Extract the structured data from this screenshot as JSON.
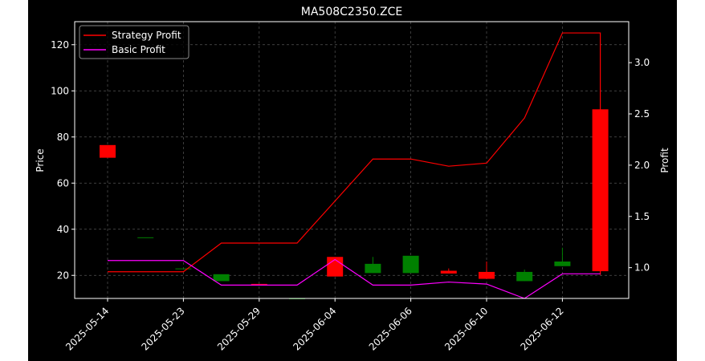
{
  "chart_data": {
    "type": "candlestick",
    "title": "MA508C2350.ZCE",
    "xlabel": "",
    "ylabel_left": "Price",
    "ylabel_right": "Profit",
    "ylim_left": [
      10,
      130
    ],
    "ylim_right": [
      0.7,
      3.4
    ],
    "x_tick_labels": [
      "2025-05-14",
      "2025-05-23",
      "2025-05-29",
      "2025-06-04",
      "2025-06-06",
      "2025-06-10",
      "2025-06-12"
    ],
    "x_tick_positions": [
      0,
      2,
      4,
      6,
      8,
      10,
      12
    ],
    "y_ticks_left": [
      20,
      40,
      60,
      80,
      100,
      120
    ],
    "y_ticks_right": [
      1.0,
      1.5,
      2.0,
      2.5,
      3.0
    ],
    "y_tick_labels_left": [
      "20",
      "40",
      "60",
      "80",
      "100",
      "120"
    ],
    "y_tick_labels_right": [
      "1.0",
      "1.5",
      "2.0",
      "2.5",
      "3.0"
    ],
    "grid": true,
    "legend_position": "top-left",
    "colors": {
      "up": "#008000",
      "down": "#ff0000",
      "strategy": "#ff0000",
      "basic": "#ff00ff",
      "background": "#000000"
    },
    "candles": [
      {
        "i": 0,
        "open": 76.5,
        "close": 71.0,
        "high": 76.5,
        "low": 71.0
      },
      {
        "i": 1,
        "open": 36.5,
        "close": 36.5,
        "high": 36.5,
        "low": 36.5
      },
      {
        "i": 2,
        "open": 23.0,
        "close": 23.0,
        "high": 23.0,
        "low": 23.0
      },
      {
        "i": 3,
        "open": 17.5,
        "close": 20.5,
        "high": 20.5,
        "low": 17.5
      },
      {
        "i": 4,
        "open": 16.3,
        "close": 16.0,
        "high": 16.3,
        "low": 16.0
      },
      {
        "i": 5,
        "open": 10.0,
        "close": 10.0,
        "high": 10.0,
        "low": 10.0
      },
      {
        "i": 6,
        "open": 28.0,
        "close": 19.5,
        "high": 28.0,
        "low": 19.5
      },
      {
        "i": 7,
        "open": 21.0,
        "close": 25.0,
        "high": 28.0,
        "low": 21.0
      },
      {
        "i": 8,
        "open": 21.0,
        "close": 28.5,
        "high": 28.5,
        "low": 21.0
      },
      {
        "i": 9,
        "open": 22.0,
        "close": 20.8,
        "high": 23.0,
        "low": 20.8
      },
      {
        "i": 10,
        "open": 21.5,
        "close": 18.5,
        "high": 26.0,
        "low": 18.5
      },
      {
        "i": 11,
        "open": 17.5,
        "close": 21.5,
        "high": 22.5,
        "low": 17.5
      },
      {
        "i": 12,
        "open": 24.0,
        "close": 26.0,
        "high": 32.0,
        "low": 24.0
      },
      {
        "i": 13,
        "open": 92.0,
        "close": 21.8,
        "high": 92.0,
        "low": 21.8
      }
    ],
    "series": [
      {
        "name": "Strategy Profit",
        "x": [
          0,
          1,
          2,
          3,
          4,
          5,
          6,
          7,
          8,
          9,
          10,
          11,
          12,
          13,
          13
        ],
        "values": [
          0.96,
          0.96,
          0.96,
          1.24,
          1.24,
          1.24,
          1.65,
          2.06,
          2.06,
          1.99,
          2.02,
          2.46,
          3.29,
          3.29,
          0.93
        ]
      },
      {
        "name": "Basic Profit",
        "x": [
          0,
          1,
          2,
          3,
          4,
          5,
          6,
          7,
          8,
          9,
          10,
          11,
          12,
          13
        ],
        "values": [
          1.07,
          1.07,
          1.07,
          0.83,
          0.83,
          0.83,
          1.08,
          0.83,
          0.83,
          0.86,
          0.84,
          0.7,
          0.94,
          0.94
        ]
      }
    ]
  }
}
